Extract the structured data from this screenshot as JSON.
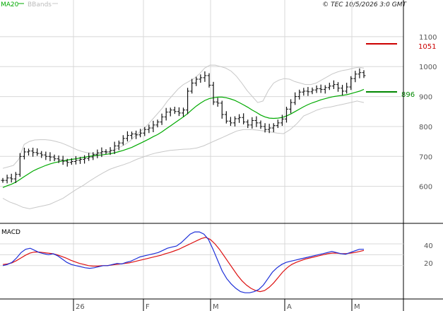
{
  "header": {
    "legend_ma": "MA20",
    "legend_bands": "BBands",
    "copyright": "© TEC 10/5/2026 3:0 GMT"
  },
  "colors": {
    "price": "#111111",
    "ma": "#00aa00",
    "bands": "#c8c8c8",
    "macd": "#1d2fd8",
    "signal": "#dd1111",
    "resistance": "#cc0000",
    "support": "#008800",
    "grid": "#d8d8d8"
  },
  "chart_data": [
    {
      "type": "ohlc",
      "name": "price",
      "ylim": [
        500,
        1180
      ],
      "y_ticks": [
        600,
        700,
        800,
        900,
        1000,
        1100
      ],
      "x_tick_labels": [
        "26",
        "F",
        "M",
        "A",
        "M"
      ],
      "legend": [
        "MA20",
        "BBands"
      ],
      "closes": [
        620,
        628,
        625,
        640,
        700,
        715,
        718,
        713,
        710,
        705,
        700,
        698,
        692,
        688,
        684,
        680,
        683,
        687,
        690,
        693,
        698,
        706,
        712,
        716,
        715,
        720,
        735,
        745,
        760,
        770,
        775,
        772,
        778,
        790,
        795,
        805,
        815,
        832,
        848,
        855,
        850,
        845,
        855,
        918,
        945,
        958,
        963,
        970,
        938,
        882,
        878,
        840,
        818,
        812,
        826,
        830,
        815,
        805,
        820,
        812,
        800,
        790,
        795,
        803,
        812,
        825,
        858,
        880,
        900,
        915,
        918,
        916,
        922,
        926,
        924,
        930,
        935,
        940,
        928,
        918,
        932,
        960,
        975,
        980,
        970
      ],
      "ma20": [
        596,
        602,
        607,
        614,
        623,
        633,
        642,
        651,
        658,
        664,
        670,
        675,
        679,
        682,
        685,
        688,
        690,
        692,
        695,
        697,
        700,
        702,
        704,
        705,
        707,
        709,
        712,
        716,
        720,
        725,
        730,
        737,
        744,
        751,
        758,
        766,
        773,
        782,
        792,
        802,
        812,
        822,
        832,
        843,
        856,
        868,
        878,
        887,
        893,
        896,
        898,
        898,
        896,
        892,
        887,
        880,
        872,
        864,
        855,
        847,
        838,
        832,
        828,
        827,
        828,
        830,
        835,
        842,
        850,
        858,
        866,
        873,
        879,
        884,
        889,
        893,
        897,
        900,
        902,
        904,
        906,
        910,
        914,
        918,
        924
      ],
      "upper_band": [
        660,
        665,
        670,
        690,
        740,
        750,
        755,
        756,
        756,
        754,
        750,
        745,
        738,
        730,
        722,
        716,
        712,
        710,
        710,
        712,
        715,
        722,
        730,
        740,
        752,
        770,
        785,
        800,
        820,
        840,
        860,
        885,
        905,
        925,
        940,
        950,
        960,
        975,
        995,
        1005,
        1005,
        1000,
        995,
        985,
        968,
        945,
        920,
        900,
        880,
        885,
        920,
        945,
        955,
        960,
        958,
        950,
        945,
        940,
        940,
        945,
        955,
        965,
        975,
        982,
        987,
        990,
        995,
        998,
        995
      ],
      "lower_band": [
        560,
        548,
        540,
        530,
        525,
        530,
        535,
        540,
        550,
        560,
        575,
        590,
        603,
        618,
        632,
        645,
        657,
        665,
        672,
        680,
        690,
        698,
        706,
        712,
        716,
        720,
        722,
        724,
        725,
        728,
        735,
        745,
        755,
        765,
        775,
        785,
        790,
        790,
        788,
        785,
        782,
        778,
        776,
        790,
        810,
        835,
        845,
        855,
        862,
        865,
        870,
        875,
        880,
        885,
        880
      ]
    },
    {
      "type": "line",
      "name": "MACD",
      "y_ticks": [
        20,
        40
      ],
      "series": [
        {
          "name": "macd",
          "values": [
            0,
            2,
            6,
            14,
            24,
            30,
            32,
            28,
            24,
            22,
            20,
            22,
            18,
            12,
            6,
            2,
            0,
            -2,
            -4,
            -5,
            -4,
            -2,
            0,
            0,
            2,
            4,
            3,
            6,
            8,
            12,
            16,
            18,
            20,
            22,
            24,
            28,
            32,
            34,
            36,
            42,
            50,
            58,
            62,
            62,
            58,
            48,
            30,
            10,
            -10,
            -24,
            -34,
            -42,
            -48,
            -50,
            -50,
            -48,
            -44,
            -36,
            -24,
            -12,
            -4,
            2,
            6,
            8,
            10,
            12,
            14,
            16,
            18,
            20,
            22,
            24,
            26,
            24,
            22,
            21,
            24,
            27,
            30,
            30
          ]
        },
        {
          "name": "signal",
          "values": [
            2,
            3,
            5,
            9,
            14,
            19,
            23,
            25,
            25,
            24,
            23,
            22,
            20,
            17,
            14,
            10,
            7,
            4,
            2,
            0,
            -1,
            -1,
            0,
            0,
            1,
            2,
            3,
            4,
            5,
            7,
            9,
            11,
            13,
            15,
            17,
            19,
            22,
            24,
            27,
            30,
            34,
            38,
            42,
            46,
            50,
            52,
            48,
            40,
            30,
            18,
            6,
            -6,
            -18,
            -28,
            -36,
            -42,
            -46,
            -48,
            -46,
            -40,
            -32,
            -22,
            -12,
            -4,
            2,
            6,
            9,
            12,
            14,
            16,
            18,
            20,
            22,
            23,
            23,
            22,
            22,
            23,
            24,
            26,
            28
          ]
        }
      ]
    }
  ],
  "annotations": {
    "resistance_value": "1051",
    "support_value": "896",
    "macd_tick_40": "40",
    "macd_tick_20": "20",
    "macd_label": "MACD"
  }
}
